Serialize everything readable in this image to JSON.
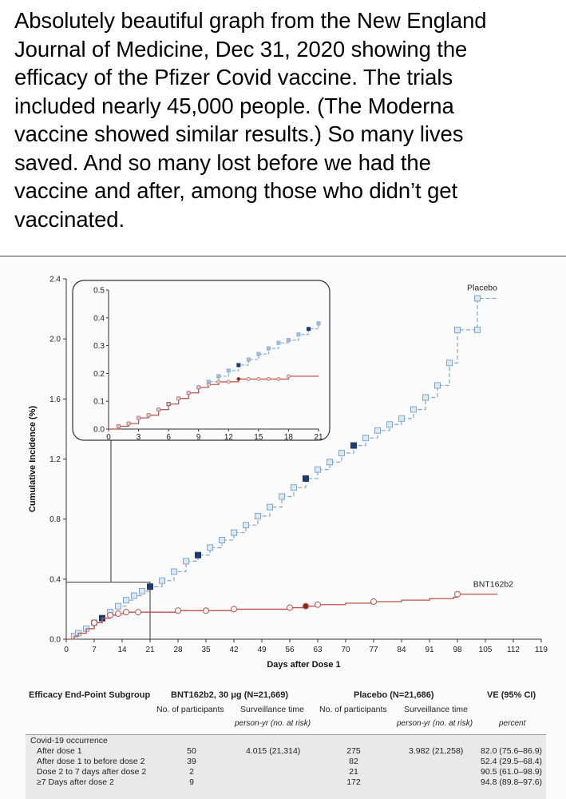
{
  "post": {
    "lines": [
      "Absolutely beautiful graph from the New England",
      "Journal of Medicine, Dec 31, 2020 showing the",
      "efficacy of the Pfizer Covid vaccine. The trials",
      "included nearly 45,000 people. (The Moderna",
      "vaccine showed similar results.) So many lives",
      "saved.  And so many lost before we had the",
      "vaccine and after, among those who didn’t get",
      "vaccinated."
    ]
  },
  "chart_data": {
    "type": "line",
    "xlabel": "Days after Dose 1",
    "ylabel": "Cumulative Incidence (%)",
    "x_ticks": [
      0,
      7,
      14,
      21,
      28,
      35,
      42,
      49,
      56,
      63,
      70,
      77,
      84,
      91,
      98,
      105,
      112,
      119
    ],
    "y_ticks": [
      0.0,
      0.4,
      0.8,
      1.2,
      1.6,
      2.0,
      2.4
    ],
    "y_tick_labels": [
      "0.0",
      "0.4",
      "0.8",
      "1.2",
      "1.6",
      "2.0",
      "2.4"
    ],
    "xlim": [
      0,
      119
    ],
    "ylim": [
      0,
      2.4
    ],
    "grid": false,
    "series": [
      {
        "name": "Placebo",
        "color": "#7fa6cf",
        "style": "dashed",
        "points": [
          [
            0,
            0
          ],
          [
            2,
            0.02
          ],
          [
            3,
            0.04
          ],
          [
            5,
            0.07
          ],
          [
            7,
            0.11
          ],
          [
            9,
            0.14
          ],
          [
            11,
            0.18
          ],
          [
            13,
            0.22
          ],
          [
            15,
            0.26
          ],
          [
            17,
            0.29
          ],
          [
            19,
            0.32
          ],
          [
            21,
            0.35
          ],
          [
            24,
            0.39
          ],
          [
            27,
            0.45
          ],
          [
            30,
            0.52
          ],
          [
            33,
            0.56
          ],
          [
            36,
            0.61
          ],
          [
            39,
            0.66
          ],
          [
            42,
            0.71
          ],
          [
            45,
            0.76
          ],
          [
            48,
            0.82
          ],
          [
            51,
            0.88
          ],
          [
            54,
            0.95
          ],
          [
            57,
            1.01
          ],
          [
            60,
            1.07
          ],
          [
            63,
            1.13
          ],
          [
            66,
            1.18
          ],
          [
            69,
            1.24
          ],
          [
            72,
            1.29
          ],
          [
            75,
            1.34
          ],
          [
            78,
            1.39
          ],
          [
            81,
            1.43
          ],
          [
            84,
            1.47
          ],
          [
            87,
            1.53
          ],
          [
            90,
            1.61
          ],
          [
            93,
            1.69
          ],
          [
            96,
            1.84
          ],
          [
            98,
            2.06
          ],
          [
            103,
            2.06
          ],
          [
            103,
            2.27
          ],
          [
            108,
            2.27
          ]
        ]
      },
      {
        "name": "BNT162b2",
        "color": "#c0524a",
        "style": "solid",
        "points": [
          [
            0,
            0
          ],
          [
            2,
            0.02
          ],
          [
            3,
            0.04
          ],
          [
            5,
            0.07
          ],
          [
            7,
            0.11
          ],
          [
            9,
            0.14
          ],
          [
            11,
            0.16
          ],
          [
            13,
            0.17
          ],
          [
            15,
            0.18
          ],
          [
            18,
            0.18
          ],
          [
            21,
            0.18
          ],
          [
            28,
            0.19
          ],
          [
            35,
            0.19
          ],
          [
            42,
            0.2
          ],
          [
            49,
            0.2
          ],
          [
            56,
            0.21
          ],
          [
            60,
            0.22
          ],
          [
            63,
            0.23
          ],
          [
            70,
            0.24
          ],
          [
            77,
            0.25
          ],
          [
            84,
            0.26
          ],
          [
            91,
            0.27
          ],
          [
            97,
            0.28
          ],
          [
            98,
            0.3
          ],
          [
            108,
            0.3
          ]
        ]
      }
    ],
    "inset": {
      "x_ticks": [
        0,
        3,
        6,
        9,
        12,
        15,
        18,
        21
      ],
      "y_ticks": [
        0.0,
        0.1,
        0.2,
        0.3,
        0.4,
        0.5
      ],
      "y_tick_labels": [
        "0.0",
        "0.1",
        "0.2",
        "0.3",
        "0.4",
        "0.5"
      ],
      "xlim": [
        0,
        21
      ],
      "ylim": [
        0,
        0.5
      ],
      "series": [
        {
          "name": "Placebo",
          "points": [
            [
              0,
              0
            ],
            [
              1,
              0.01
            ],
            [
              2,
              0.02
            ],
            [
              3,
              0.04
            ],
            [
              4,
              0.05
            ],
            [
              5,
              0.07
            ],
            [
              6,
              0.09
            ],
            [
              7,
              0.11
            ],
            [
              8,
              0.13
            ],
            [
              9,
              0.15
            ],
            [
              10,
              0.17
            ],
            [
              11,
              0.19
            ],
            [
              12,
              0.21
            ],
            [
              13,
              0.23
            ],
            [
              14,
              0.25
            ],
            [
              15,
              0.27
            ],
            [
              16,
              0.29
            ],
            [
              17,
              0.31
            ],
            [
              18,
              0.32
            ],
            [
              19,
              0.34
            ],
            [
              20,
              0.36
            ],
            [
              21,
              0.38
            ]
          ]
        },
        {
          "name": "BNT162b2",
          "points": [
            [
              0,
              0
            ],
            [
              1,
              0.01
            ],
            [
              2,
              0.02
            ],
            [
              3,
              0.04
            ],
            [
              4,
              0.05
            ],
            [
              5,
              0.07
            ],
            [
              6,
              0.09
            ],
            [
              7,
              0.11
            ],
            [
              8,
              0.13
            ],
            [
              9,
              0.15
            ],
            [
              10,
              0.16
            ],
            [
              11,
              0.17
            ],
            [
              12,
              0.17
            ],
            [
              13,
              0.18
            ],
            [
              14,
              0.18
            ],
            [
              15,
              0.18
            ],
            [
              16,
              0.18
            ],
            [
              17,
              0.18
            ],
            [
              18,
              0.19
            ],
            [
              19,
              0.19
            ],
            [
              20,
              0.19
            ],
            [
              21,
              0.19
            ]
          ]
        }
      ]
    }
  },
  "table": {
    "headers": {
      "subgroup": "Efficacy End-Point Subgroup",
      "bnt": "BNT162b2, 30 μg (N=21,669)",
      "placebo": "Placebo (N=21,686)",
      "ve": "VE (95% CI)",
      "n_participants": "No. of participants",
      "surveillance": "Surveillance time",
      "person_yr": "person-yr (no. at risk)",
      "percent": "percent"
    },
    "group_label": "Covid-19 occurrence",
    "rows": [
      {
        "label": "After dose 1",
        "bnt_n": "50",
        "bnt_time": "4.015 (21,314)",
        "pl_n": "275",
        "pl_time": "3.982 (21,258)",
        "ve": "82.0 (75.6–86.9)"
      },
      {
        "label": "After dose 1 to before dose 2",
        "bnt_n": "39",
        "bnt_time": "",
        "pl_n": "82",
        "pl_time": "",
        "ve": "52.4 (29.5–68.4)"
      },
      {
        "label": "Dose 2 to 7 days after dose 2",
        "bnt_n": "2",
        "bnt_time": "",
        "pl_n": "21",
        "pl_time": "",
        "ve": "90.5 (61.0–98.9)"
      },
      {
        "label": "≥7 Days after dose 2",
        "bnt_n": "9",
        "bnt_time": "",
        "pl_n": "172",
        "pl_time": "",
        "ve": "94.8 (89.8–97.6)"
      }
    ]
  }
}
